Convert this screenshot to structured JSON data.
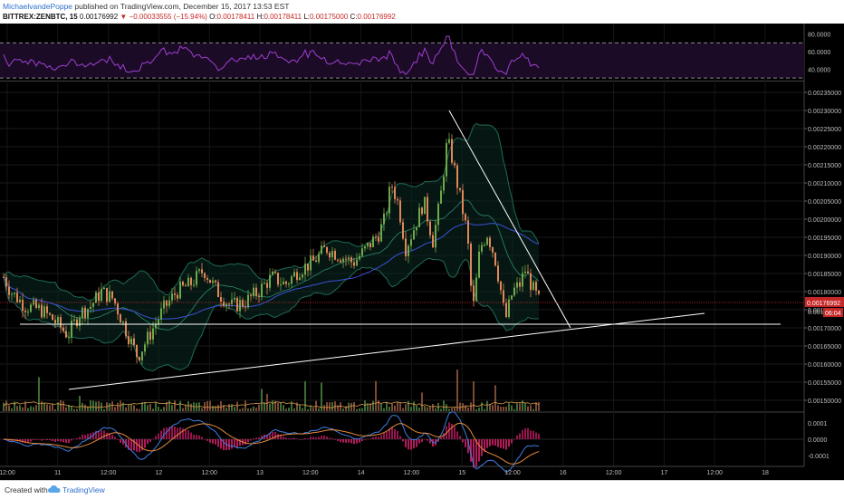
{
  "header": {
    "author": "MichaelvandePoppe",
    "published_text": "published on TradingView.com, December 15, 2017 13:53 EST",
    "symbol": "BITTREX:ZENBTC, 15",
    "last_price": "0.00176992",
    "change": "▼ −0.00033555 (−15.94%)",
    "ohlc": {
      "o_label": "O:",
      "o": "0.00178411",
      "h_label": "H:",
      "h": "0.00178411",
      "l_label": "L:",
      "l": "0.00175000",
      "c_label": "C:",
      "c": "0.00176992"
    }
  },
  "footer": {
    "created_with": "Created with",
    "brand": "TradingView"
  },
  "colors": {
    "background": "#000000",
    "up": "#6ea84a",
    "down": "#e0875a",
    "rsi_line": "#9c3fd0",
    "bollinger": "#1f6a56",
    "ma_blue": "#3b4fd6",
    "trendline": "#ffffff",
    "price_tag": "#c62828"
  },
  "chart_data": {
    "type": "candlestick",
    "x_tick_labels": [
      "12:00",
      "11",
      "12:00",
      "12",
      "12:00",
      "13",
      "12:00",
      "14",
      "12:00",
      "15",
      "12:00",
      "16",
      "12:00",
      "17",
      "12:00",
      "18"
    ],
    "price_ticks": [
      "0.00235000",
      "0.00230000",
      "0.00225000",
      "0.00220000",
      "0.00215000",
      "0.00210000",
      "0.00205000",
      "0.00200000",
      "0.00195000",
      "0.00190000",
      "0.00185000",
      "0.00180000",
      "0.00175000",
      "0.00170000",
      "0.00165000",
      "0.00160000",
      "0.00155000",
      "0.00150000"
    ],
    "price_ylim": [
      0.00147,
      0.00238
    ],
    "last_price_label": "0.00176992",
    "countdown_label": "06:04",
    "partial_tick_label": "0.001",
    "rsi": {
      "ticks": [
        "80.0000",
        "60.0000",
        "40.0000"
      ],
      "ylim": [
        28,
        88
      ],
      "band": [
        30,
        70
      ]
    },
    "macd": {
      "ticks": [
        "0.0001",
        "0.0000",
        "-0.0001"
      ],
      "ylim": [
        -0.00016,
        0.00016
      ]
    },
    "price_anchors": [
      [
        0,
        0.00186
      ],
      [
        12,
        0.0018
      ],
      [
        28,
        0.00176
      ],
      [
        45,
        0.00175
      ],
      [
        60,
        0.00172
      ],
      [
        75,
        0.00168
      ],
      [
        88,
        0.00174
      ],
      [
        100,
        0.00176
      ],
      [
        112,
        0.0018
      ],
      [
        125,
        0.00178
      ],
      [
        138,
        0.0017
      ],
      [
        152,
        0.00162
      ],
      [
        165,
        0.00168
      ],
      [
        180,
        0.00175
      ],
      [
        195,
        0.0018
      ],
      [
        210,
        0.00182
      ],
      [
        225,
        0.00186
      ],
      [
        240,
        0.0018
      ],
      [
        255,
        0.00176
      ],
      [
        270,
        0.00177
      ],
      [
        285,
        0.0018
      ],
      [
        300,
        0.00184
      ],
      [
        315,
        0.00182
      ],
      [
        330,
        0.00186
      ],
      [
        345,
        0.00188
      ],
      [
        360,
        0.00192
      ],
      [
        375,
        0.0019
      ],
      [
        390,
        0.00188
      ],
      [
        405,
        0.00192
      ],
      [
        418,
        0.00196
      ],
      [
        425,
        0.002
      ],
      [
        432,
        0.0021
      ],
      [
        440,
        0.00204
      ],
      [
        448,
        0.00192
      ],
      [
        458,
        0.00198
      ],
      [
        468,
        0.00205
      ],
      [
        478,
        0.00194
      ],
      [
        486,
        0.00205
      ],
      [
        494,
        0.00222
      ],
      [
        500,
        0.00216
      ],
      [
        508,
        0.00206
      ],
      [
        516,
        0.00196
      ],
      [
        522,
        0.00174
      ],
      [
        530,
        0.00192
      ],
      [
        538,
        0.00196
      ],
      [
        546,
        0.0019
      ],
      [
        552,
        0.00182
      ],
      [
        558,
        0.00172
      ],
      [
        566,
        0.0018
      ],
      [
        574,
        0.00182
      ],
      [
        580,
        0.00186
      ],
      [
        588,
        0.00181
      ],
      [
        596,
        0.00177
      ]
    ],
    "trendlines": [
      {
        "name": "support-horizontal",
        "from": [
          22,
          0.00171
        ],
        "to": [
          862,
          0.00171
        ]
      },
      {
        "name": "rising-support",
        "from": [
          76,
          0.00153
        ],
        "to": [
          778,
          0.00174
        ]
      },
      {
        "name": "descending-resistance",
        "from": [
          496,
          0.0023
        ],
        "to": [
          630,
          0.0017
        ]
      }
    ]
  }
}
